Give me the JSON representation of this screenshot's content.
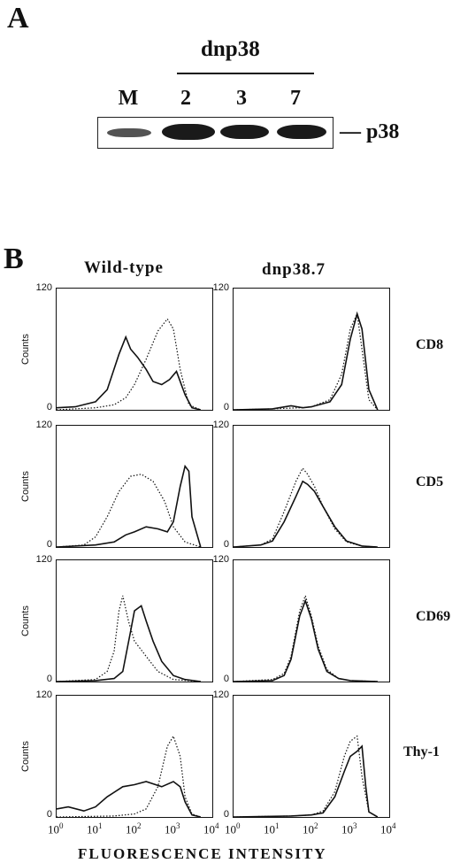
{
  "panel_a": {
    "letter": "A",
    "group_label": "dnp38",
    "lanes": [
      "M",
      "2",
      "3",
      "7"
    ],
    "band_label": "— p38"
  },
  "panel_b": {
    "letter": "B",
    "columns": [
      "Wild-type",
      "dnp38.7"
    ],
    "rows": [
      "CD8",
      "CD5",
      "CD69",
      "Thy-1"
    ],
    "y_label": "Counts",
    "y_ticks": [
      "120",
      "0"
    ],
    "x_ticks": [
      {
        "base": "10",
        "exp": "0"
      },
      {
        "base": "10",
        "exp": "1"
      },
      {
        "base": "10",
        "exp": "2"
      },
      {
        "base": "10",
        "exp": "3"
      },
      {
        "base": "10",
        "exp": "4"
      }
    ],
    "x_title": "FLUORESCENCE INTENSITY"
  },
  "chart_data": {
    "type": "line",
    "xlabel": "FLUORESCENCE INTENSITY",
    "ylabel": "Counts",
    "x_scale": "log",
    "xlim": [
      1,
      10000
    ],
    "ylim": [
      0,
      120
    ],
    "line_styles": {
      "dotted": "dotted line",
      "solid": "solid line"
    },
    "panels": [
      {
        "row": "CD8",
        "column": "Wild-type",
        "dotted": {
          "x": [
            1,
            10,
            30,
            60,
            100,
            200,
            400,
            700,
            1000,
            1500,
            2500,
            5000
          ],
          "y": [
            0,
            2,
            5,
            12,
            25,
            50,
            78,
            90,
            80,
            40,
            5,
            0
          ]
        },
        "solid": {
          "x": [
            1,
            3,
            10,
            20,
            40,
            60,
            80,
            120,
            200,
            300,
            500,
            800,
            1200,
            2000,
            3000,
            5000
          ],
          "y": [
            2,
            3,
            8,
            20,
            55,
            72,
            60,
            52,
            40,
            28,
            25,
            30,
            38,
            15,
            2,
            0
          ]
        }
      },
      {
        "row": "CD8",
        "column": "dnp38.7",
        "dotted": {
          "x": [
            1,
            10,
            50,
            100,
            300,
            600,
            1000,
            1500,
            2000,
            3000,
            5000
          ],
          "y": [
            0,
            1,
            2,
            3,
            10,
            35,
            80,
            95,
            60,
            10,
            0
          ]
        },
        "solid": {
          "x": [
            1,
            10,
            30,
            60,
            100,
            300,
            600,
            1000,
            1500,
            2000,
            3000,
            5000
          ],
          "y": [
            0,
            1,
            4,
            2,
            3,
            8,
            25,
            70,
            95,
            80,
            20,
            0
          ]
        }
      },
      {
        "row": "CD5",
        "column": "Wild-type",
        "dotted": {
          "x": [
            1,
            5,
            10,
            20,
            40,
            80,
            150,
            300,
            600,
            1000,
            2000,
            5000
          ],
          "y": [
            0,
            2,
            10,
            30,
            55,
            70,
            72,
            65,
            45,
            20,
            5,
            0
          ]
        },
        "solid": {
          "x": [
            1,
            10,
            30,
            60,
            100,
            200,
            400,
            700,
            1000,
            1500,
            2000,
            2500,
            3000,
            5000
          ],
          "y": [
            0,
            2,
            5,
            12,
            15,
            20,
            18,
            15,
            25,
            60,
            80,
            75,
            30,
            0
          ]
        }
      },
      {
        "row": "CD5",
        "column": "dnp38.7",
        "dotted": {
          "x": [
            1,
            5,
            10,
            20,
            40,
            60,
            80,
            120,
            200,
            400,
            800,
            2000,
            5000
          ],
          "y": [
            0,
            2,
            8,
            35,
            65,
            78,
            72,
            60,
            40,
            18,
            5,
            1,
            0
          ]
        },
        "solid": {
          "x": [
            1,
            5,
            10,
            20,
            40,
            60,
            80,
            120,
            200,
            400,
            800,
            2000,
            5000
          ],
          "y": [
            0,
            2,
            6,
            25,
            50,
            65,
            62,
            55,
            40,
            20,
            6,
            1,
            0
          ]
        }
      },
      {
        "row": "CD69",
        "column": "Wild-type",
        "dotted": {
          "x": [
            1,
            10,
            20,
            30,
            40,
            50,
            70,
            100,
            200,
            400,
            1000,
            5000
          ],
          "y": [
            0,
            2,
            10,
            30,
            70,
            85,
            60,
            40,
            25,
            10,
            2,
            0
          ]
        },
        "solid": {
          "x": [
            1,
            10,
            30,
            50,
            80,
            100,
            150,
            200,
            300,
            500,
            1000,
            2000,
            5000
          ],
          "y": [
            0,
            1,
            3,
            10,
            50,
            70,
            75,
            60,
            40,
            20,
            6,
            2,
            0
          ]
        }
      },
      {
        "row": "CD69",
        "column": "dnp38.7",
        "dotted": {
          "x": [
            1,
            10,
            20,
            30,
            50,
            70,
            100,
            150,
            250,
            500,
            1000,
            5000
          ],
          "y": [
            0,
            2,
            8,
            25,
            70,
            85,
            65,
            35,
            12,
            3,
            1,
            0
          ]
        },
        "solid": {
          "x": [
            1,
            10,
            20,
            30,
            50,
            70,
            100,
            150,
            250,
            500,
            1000,
            5000
          ],
          "y": [
            0,
            1,
            6,
            22,
            65,
            80,
            62,
            32,
            10,
            3,
            1,
            0
          ]
        }
      },
      {
        "row": "Thy-1",
        "column": "Wild-type",
        "dotted": {
          "x": [
            1,
            30,
            100,
            200,
            400,
            700,
            1000,
            1500,
            2000,
            3000,
            5000
          ],
          "y": [
            0,
            1,
            3,
            8,
            30,
            70,
            80,
            60,
            20,
            3,
            0
          ]
        },
        "solid": {
          "x": [
            1,
            2,
            5,
            10,
            20,
            50,
            100,
            200,
            500,
            1000,
            1500,
            2000,
            3000,
            5000
          ],
          "y": [
            8,
            10,
            6,
            10,
            20,
            30,
            32,
            35,
            30,
            35,
            30,
            15,
            2,
            0
          ]
        }
      },
      {
        "row": "Thy-1",
        "column": "dnp38.7",
        "dotted": {
          "x": [
            1,
            30,
            100,
            200,
            400,
            700,
            1000,
            1500,
            2000,
            3000,
            5000
          ],
          "y": [
            0,
            1,
            2,
            6,
            25,
            60,
            75,
            80,
            40,
            5,
            0
          ]
        },
        "solid": {
          "x": [
            1,
            30,
            100,
            200,
            400,
            700,
            1000,
            1500,
            2000,
            2500,
            3000,
            5000
          ],
          "y": [
            0,
            1,
            2,
            4,
            20,
            45,
            60,
            65,
            70,
            30,
            5,
            0
          ]
        }
      }
    ]
  }
}
